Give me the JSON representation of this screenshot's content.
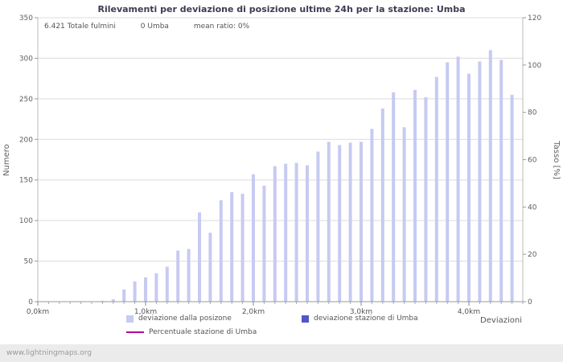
{
  "chart_data": {
    "type": "bar",
    "title": "Rilevamenti per deviazione di posizione ultime 24h per la stazione: Umba",
    "annotations": {
      "total_strikes": "6.421 Totale fulmini",
      "station_count": "0 Umba",
      "mean_ratio": "mean ratio: 0%"
    },
    "xlabel": "Deviazioni",
    "ylabel_left": "Numero",
    "ylabel_right": "Tasso [%]",
    "xlim": [
      0,
      4.5
    ],
    "ylim_left": [
      0,
      350
    ],
    "ylim_right": [
      0,
      120
    ],
    "yticks_left": [
      0,
      50,
      100,
      150,
      200,
      250,
      300,
      350
    ],
    "yticks_right": [
      0,
      20,
      40,
      60,
      80,
      100,
      120
    ],
    "xticks": [
      {
        "v": 0,
        "label": "0,0km"
      },
      {
        "v": 1,
        "label": "1,0km"
      },
      {
        "v": 2,
        "label": "2,0km"
      },
      {
        "v": 3,
        "label": "3,0km"
      },
      {
        "v": 4,
        "label": "4,0km"
      }
    ],
    "grid": true,
    "legend_position": "bottom",
    "x": [
      0.0,
      0.1,
      0.2,
      0.3,
      0.4,
      0.5,
      0.6,
      0.7,
      0.8,
      0.9,
      1.0,
      1.1,
      1.2,
      1.3,
      1.4,
      1.5,
      1.6,
      1.7,
      1.8,
      1.9,
      2.0,
      2.1,
      2.2,
      2.3,
      2.4,
      2.5,
      2.6,
      2.7,
      2.8,
      2.9,
      3.0,
      3.1,
      3.2,
      3.3,
      3.4,
      3.5,
      3.6,
      3.7,
      3.8,
      3.9,
      4.0,
      4.1,
      4.2,
      4.3,
      4.4
    ],
    "series": [
      {
        "name": "deviazione dalla posizone",
        "type": "bar",
        "color": "#c7caf1",
        "values": [
          0,
          0,
          0,
          0,
          0,
          0,
          1,
          3,
          15,
          25,
          30,
          35,
          43,
          63,
          65,
          110,
          85,
          125,
          135,
          133,
          157,
          143,
          167,
          170,
          171,
          168,
          185,
          197,
          193,
          196,
          197,
          213,
          238,
          258,
          215,
          261,
          252,
          277,
          295,
          302,
          281,
          296,
          310,
          298,
          255
        ]
      },
      {
        "name": "deviazione stazione di Umba",
        "type": "bar",
        "color": "#5156c8",
        "values": []
      },
      {
        "name": "Percentuale stazione di Umba",
        "type": "line",
        "color": "#b0009b",
        "values": []
      }
    ],
    "colors": {
      "grid": "#dcdcdc",
      "axis": "#999999",
      "tick": "#999999",
      "title_text": "#3c3c52",
      "text": "#606060"
    }
  },
  "footer": {
    "site": "www.lightningmaps.org"
  }
}
